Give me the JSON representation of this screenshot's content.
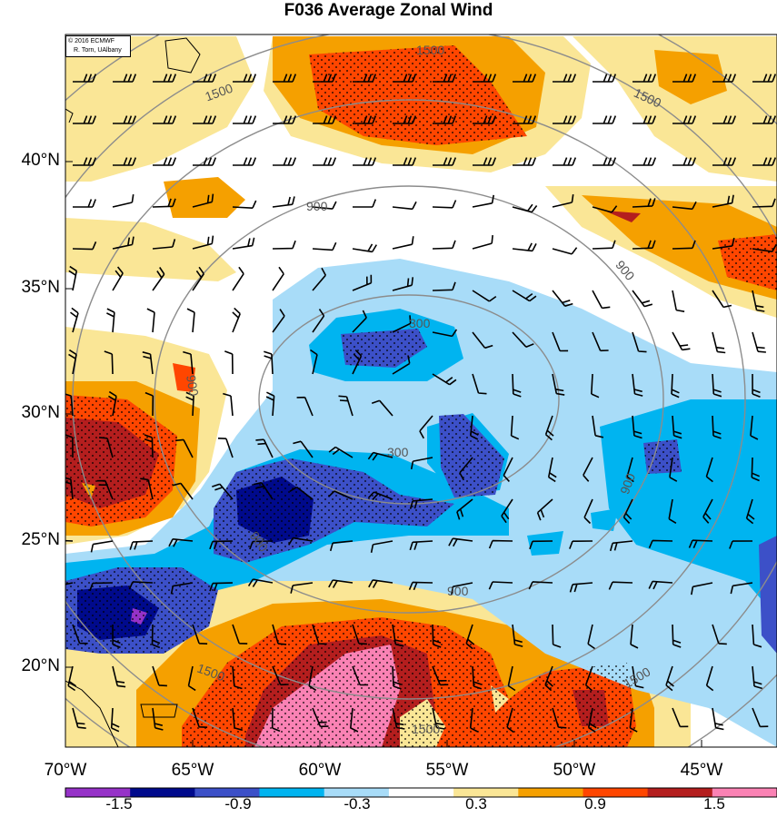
{
  "title": "F036 Average Zonal Wind",
  "credit": {
    "line1": "© 2016 ECMWF",
    "line2": "R. Torn, UAlbany"
  },
  "latitude_labels": [
    "40°N",
    "35°N",
    "30°N",
    "25°N",
    "20°N"
  ],
  "longitude_labels": [
    "70°W",
    "65°W",
    "60°W",
    "55°W",
    "50°W",
    "45°W"
  ],
  "colorbar": {
    "tick_labels": [
      "-1.5",
      "-0.9",
      "-0.3",
      "0.3",
      "0.9",
      "1.5"
    ],
    "colors": [
      "#9632c8",
      "#000a8c",
      "#3c50c8",
      "#00b4f0",
      "#a8dcf8",
      "#ffffff",
      "#fae696",
      "#f5a000",
      "#ff4600",
      "#b41e1e",
      "#fa82b4"
    ]
  },
  "contour_labels": [
    "300",
    "900",
    "1500"
  ],
  "colors": {
    "contour": "#8c8c8c",
    "land_outline": "#000000"
  }
}
